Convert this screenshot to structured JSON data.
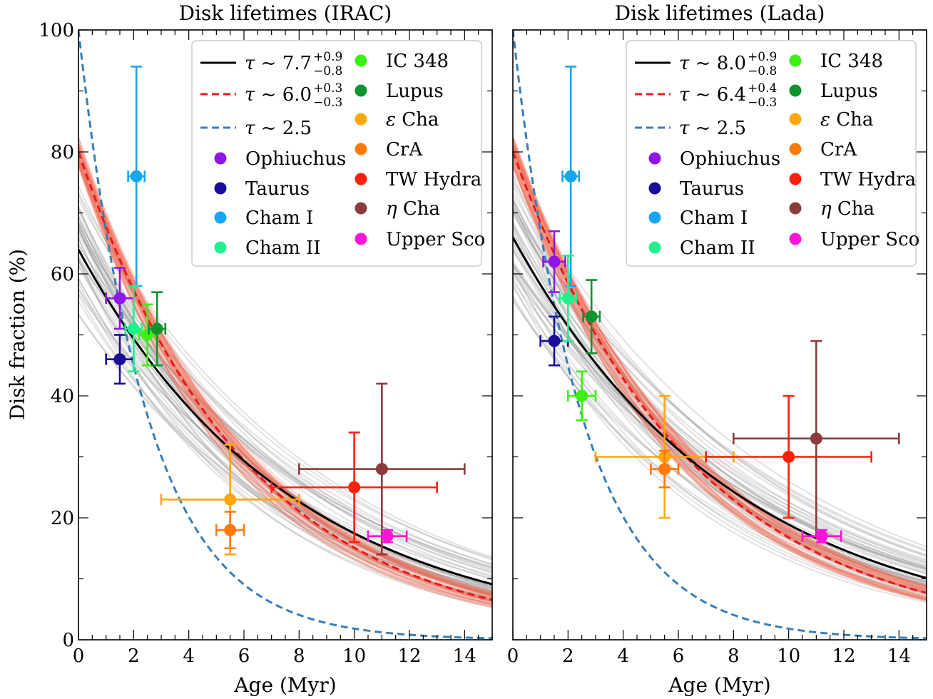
{
  "figure": {
    "ylabel": "Disk fraction (%)"
  },
  "chart_data": [
    {
      "type": "scatter",
      "title": "Disk lifetimes (IRAC)",
      "xlabel": "Age (Myr)",
      "ylabel": "Disk fraction (%)",
      "xlim": [
        0,
        15
      ],
      "ylim": [
        0,
        100
      ],
      "xticks": [
        0,
        2,
        4,
        6,
        8,
        10,
        12,
        14
      ],
      "yticks": [
        0,
        20,
        40,
        60,
        80,
        100
      ],
      "show_yticklabels": true,
      "grid": false,
      "legend_position": "top-right",
      "curves": [
        {
          "label_math": "τ ~ 7.7",
          "label_sup": "+0.9",
          "label_sub": "−0.8",
          "amplitude": 64,
          "tau": 7.7,
          "color": "#000000",
          "style": "solid"
        },
        {
          "label_math": "τ ~ 6.0",
          "label_sup": "+0.3",
          "label_sub": "−0.3",
          "amplitude": 80,
          "tau": 6.0,
          "color": "#e41a1c",
          "style": "dashed"
        },
        {
          "label_math": "τ ~ 2.5",
          "amplitude": 100,
          "tau": 2.5,
          "color": "#377eb8",
          "style": "dashed"
        }
      ],
      "series": [
        {
          "name": "Ophiuchus",
          "color": "#8e16e8",
          "x": 1.5,
          "y": 56,
          "xerr": [
            0.5,
            0.5
          ],
          "yerr": [
            5,
            5
          ]
        },
        {
          "name": "Taurus",
          "color": "#1a0d99",
          "x": 1.5,
          "y": 46,
          "xerr": [
            0.5,
            0.5
          ],
          "yerr": [
            4,
            4
          ]
        },
        {
          "name": "Cham I",
          "color": "#17a6f0",
          "x": 2.1,
          "y": 76,
          "xerr": [
            0.3,
            0.3
          ],
          "yerr": [
            18,
            18
          ]
        },
        {
          "name": "Cham II",
          "color": "#22f08e",
          "x": 2.0,
          "y": 51,
          "xerr": [
            0.3,
            0.3
          ],
          "yerr": [
            7,
            7
          ]
        },
        {
          "name": "IC 348",
          "color": "#3df014",
          "x": 2.5,
          "y": 50,
          "xerr": [
            0.3,
            0.3
          ],
          "yerr": [
            5,
            5
          ]
        },
        {
          "name": "Lupus",
          "color": "#10922e",
          "x": 2.85,
          "y": 51,
          "xerr": [
            0.3,
            0.3
          ],
          "yerr": [
            6,
            6
          ]
        },
        {
          "name": "ε Cha",
          "color": "#ffa60d",
          "x": 5.5,
          "y": 23,
          "xerr": [
            2.5,
            2.5
          ],
          "yerr": [
            9,
            9
          ]
        },
        {
          "name": "CrA",
          "color": "#ff7a0a",
          "x": 5.5,
          "y": 18,
          "xerr": [
            0.5,
            0.5
          ],
          "yerr": [
            3,
            3
          ]
        },
        {
          "name": "TW Hydra",
          "color": "#ff200a",
          "x": 10,
          "y": 25,
          "xerr": [
            3,
            3
          ],
          "yerr": [
            9,
            9
          ]
        },
        {
          "name": "η Cha",
          "color": "#8a3c3c",
          "x": 11,
          "y": 28,
          "xerr": [
            3,
            3
          ],
          "yerr": [
            14,
            14
          ]
        },
        {
          "name": "Upper Sco",
          "color": "#ff14d8",
          "x": 11.2,
          "y": 17,
          "xerr": [
            0.7,
            0.7
          ],
          "yerr": [
            1,
            1
          ]
        }
      ]
    },
    {
      "type": "scatter",
      "title": "Disk lifetimes (Lada)",
      "xlabel": "Age (Myr)",
      "ylabel": "",
      "xlim": [
        0,
        15
      ],
      "ylim": [
        0,
        100
      ],
      "xticks": [
        0,
        2,
        4,
        6,
        8,
        10,
        12,
        14
      ],
      "yticks": [
        0,
        20,
        40,
        60,
        80,
        100
      ],
      "show_yticklabels": false,
      "grid": false,
      "legend_position": "top-right",
      "curves": [
        {
          "label_math": "τ ~ 8.0",
          "label_sup": "+0.9",
          "label_sub": "−0.8",
          "amplitude": 66,
          "tau": 8.0,
          "color": "#000000",
          "style": "solid"
        },
        {
          "label_math": "τ ~ 6.4",
          "label_sup": "+0.4",
          "label_sub": "−0.3",
          "amplitude": 80,
          "tau": 6.4,
          "color": "#e41a1c",
          "style": "dashed"
        },
        {
          "label_math": "τ ~ 2.5",
          "amplitude": 100,
          "tau": 2.5,
          "color": "#377eb8",
          "style": "dashed"
        }
      ],
      "series": [
        {
          "name": "Ophiuchus",
          "color": "#8e16e8",
          "x": 1.5,
          "y": 62,
          "xerr": [
            0.4,
            0.4
          ],
          "yerr": [
            5,
            5
          ]
        },
        {
          "name": "Taurus",
          "color": "#1a0d99",
          "x": 1.5,
          "y": 49,
          "xerr": [
            0.5,
            0.5
          ],
          "yerr": [
            4,
            4
          ]
        },
        {
          "name": "Cham I",
          "color": "#17a6f0",
          "x": 2.1,
          "y": 76,
          "xerr": [
            0.3,
            0.3
          ],
          "yerr": [
            18,
            18
          ]
        },
        {
          "name": "Cham II",
          "color": "#22f08e",
          "x": 2.0,
          "y": 56,
          "xerr": [
            0.3,
            0.3
          ],
          "yerr": [
            7,
            7
          ]
        },
        {
          "name": "IC 348",
          "color": "#3df014",
          "x": 2.5,
          "y": 40,
          "xerr": [
            0.5,
            0.5
          ],
          "yerr": [
            4,
            4
          ]
        },
        {
          "name": "Lupus",
          "color": "#10922e",
          "x": 2.85,
          "y": 53,
          "xerr": [
            0.3,
            0.3
          ],
          "yerr": [
            6,
            6
          ]
        },
        {
          "name": "ε Cha",
          "color": "#ffa60d",
          "x": 5.5,
          "y": 30,
          "xerr": [
            2.5,
            2.5
          ],
          "yerr": [
            10,
            10
          ]
        },
        {
          "name": "CrA",
          "color": "#ff7a0a",
          "x": 5.5,
          "y": 28,
          "xerr": [
            0.5,
            0.5
          ],
          "yerr": [
            3,
            3
          ]
        },
        {
          "name": "TW Hydra",
          "color": "#ff200a",
          "x": 10,
          "y": 30,
          "xerr": [
            3,
            3
          ],
          "yerr": [
            10,
            10
          ]
        },
        {
          "name": "η Cha",
          "color": "#8a3c3c",
          "x": 11,
          "y": 33,
          "xerr": [
            3,
            3
          ],
          "yerr": [
            16,
            16
          ]
        },
        {
          "name": "Upper Sco",
          "color": "#ff14d8",
          "x": 11.2,
          "y": 17,
          "xerr": [
            0.7,
            0.7
          ],
          "yerr": [
            1,
            1
          ]
        }
      ]
    }
  ]
}
